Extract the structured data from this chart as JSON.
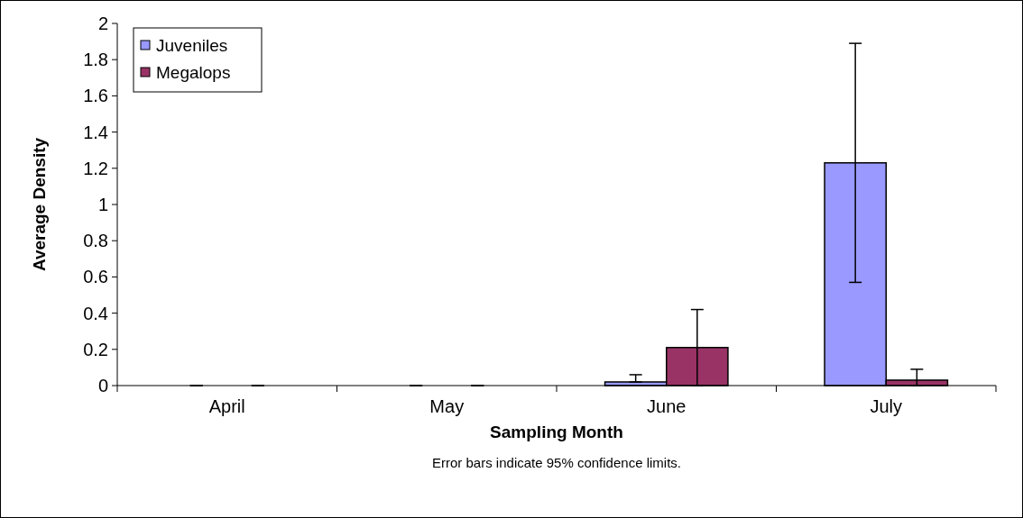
{
  "chart_data": {
    "type": "bar",
    "xlabel": "Sampling Month",
    "ylabel": "Average Density",
    "categories": [
      "April",
      "May",
      "June",
      "July"
    ],
    "series": [
      {
        "name": "Juveniles",
        "color": "#9999ff",
        "values": [
          0,
          0,
          0.02,
          1.23
        ],
        "errors": [
          0,
          0,
          [
            0.02,
            0.06
          ],
          0.66
        ]
      },
      {
        "name": "Megalops",
        "color": "#993366",
        "values": [
          0,
          0,
          0.21,
          0.03
        ],
        "errors": [
          0,
          0,
          0.21,
          [
            0,
            0.09
          ]
        ]
      }
    ],
    "ylim": [
      0,
      2
    ],
    "yticks": [
      0,
      0.2,
      0.4,
      0.6,
      0.8,
      1,
      1.2,
      1.4,
      1.6,
      1.8,
      2
    ],
    "legend": "top left",
    "grid": false,
    "annotations": [
      "Error bars indicate 95% confidence limits."
    ]
  }
}
